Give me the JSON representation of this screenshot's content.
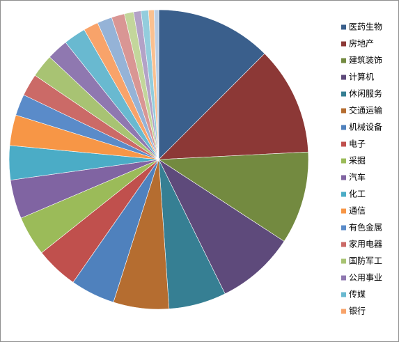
{
  "chart_data": {
    "type": "pie",
    "categories": [
      "医药生物",
      "房地产",
      "建筑装饰",
      "计算机",
      "休闲服务",
      "交通运输",
      "机械设备",
      "电子",
      "采掘",
      "汽车",
      "化工",
      "通信",
      "有色金属",
      "家用电器",
      "国防军工",
      "公用事业",
      "传媒",
      "银行",
      null,
      null,
      null,
      null,
      null,
      null,
      null
    ],
    "values": [
      12.5,
      11.7,
      10,
      8.5,
      6.2,
      6,
      4.8,
      4.6,
      4.3,
      4.2,
      3.7,
      3.3,
      2.3,
      2.4,
      2.5,
      2.3,
      2.4,
      1.6,
      1.6,
      1.4,
      1.0,
      0.8,
      0.8,
      0.6,
      0.5
    ],
    "colors": [
      "#3a5f8c",
      "#8c3836",
      "#738a40",
      "#5e4a7b",
      "#367f93",
      "#b56d30",
      "#4f81bd",
      "#c0504d",
      "#9bbb59",
      "#8064a2",
      "#4bacc6",
      "#f79646",
      "#5a8bc9",
      "#cb6a67",
      "#a8c373",
      "#8f78b0",
      "#69b9d0",
      "#f8a36a",
      "#95b3d7",
      "#d99694",
      "#c3d69b",
      "#b3a2c7",
      "#93cddd",
      "#fac090",
      "#b9cde5"
    ],
    "legend": "right"
  }
}
